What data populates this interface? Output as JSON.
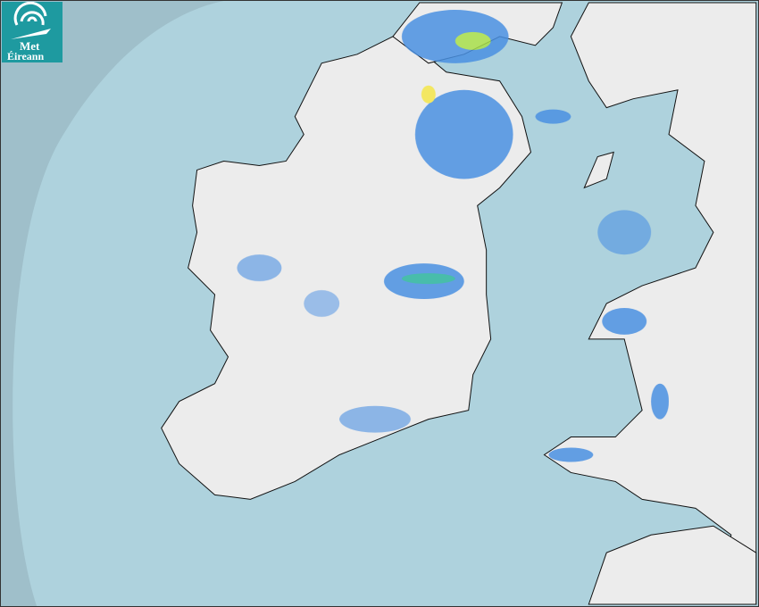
{
  "logo": {
    "line1": "Met",
    "line2": "Éireann"
  },
  "colors": {
    "outside_coverage": "#9fbfca",
    "radar_coverage": "#aed2dd",
    "land": "#eeeeee",
    "rain_light": "#4a90e2",
    "rain_moderate": "#2bb5a0",
    "rain_heavy": "#a8e04a",
    "rain_intense": "#f5e74a",
    "logo_bg": "#1e9aa0"
  },
  "icons": {
    "logo": "met-eireann-swirl-icon"
  }
}
